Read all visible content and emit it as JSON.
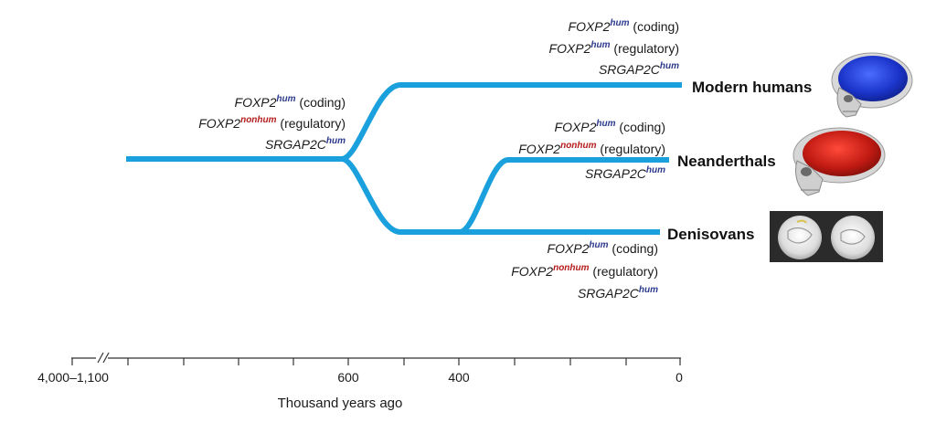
{
  "colors": {
    "branch": "#1aa0dc",
    "hum_superscript": "#2b3a8e",
    "nonhum_superscript": "#b51c1c",
    "text": "#1a1a1a"
  },
  "populations": {
    "modern": "Modern humans",
    "neanderthal": "Neanderthals",
    "denisovan": "Denisovans"
  },
  "gene_sets": {
    "ancestor": [
      {
        "gene": "FOXP2",
        "sup": "hum",
        "sup_type": "hum",
        "suffix": " (coding)"
      },
      {
        "gene": "FOXP2",
        "sup": "nonhum",
        "sup_type": "nonhum",
        "suffix": " (regulatory)"
      },
      {
        "gene": "SRGAP2C",
        "sup": "hum",
        "sup_type": "hum",
        "suffix": ""
      }
    ],
    "modern": [
      {
        "gene": "FOXP2",
        "sup": "hum",
        "sup_type": "hum",
        "suffix": " (coding)"
      },
      {
        "gene": "FOXP2",
        "sup": "hum",
        "sup_type": "hum",
        "suffix": " (regulatory)"
      },
      {
        "gene": "SRGAP2C",
        "sup": "hum",
        "sup_type": "hum",
        "suffix": ""
      }
    ],
    "neanderthal": [
      {
        "gene": "FOXP2",
        "sup": "hum",
        "sup_type": "hum",
        "suffix": " (coding)"
      },
      {
        "gene": "FOXP2",
        "sup": "nonhum",
        "sup_type": "nonhum",
        "suffix": " (regulatory)"
      },
      {
        "gene": "SRGAP2C",
        "sup": "hum",
        "sup_type": "hum",
        "suffix": ""
      }
    ],
    "denisovan": [
      {
        "gene": "FOXP2",
        "sup": "hum",
        "sup_type": "hum",
        "suffix": " (coding)"
      },
      {
        "gene": "FOXP2",
        "sup": "nonhum",
        "sup_type": "nonhum",
        "suffix": " (regulatory)"
      },
      {
        "gene": "SRGAP2C",
        "sup": "hum",
        "sup_type": "hum",
        "suffix": ""
      }
    ]
  },
  "axis": {
    "title": "Thousand years ago",
    "ticks": [
      {
        "value": 1100,
        "label": "4,000–1,100"
      },
      {
        "value": 600,
        "label": "600"
      },
      {
        "value": 400,
        "label": "400"
      },
      {
        "value": 0,
        "label": "0"
      }
    ]
  },
  "images": {
    "modern": "modern-human-skull-icon",
    "neanderthal": "neanderthal-skull-icon",
    "denisovan": "denisovan-teeth-icon"
  }
}
